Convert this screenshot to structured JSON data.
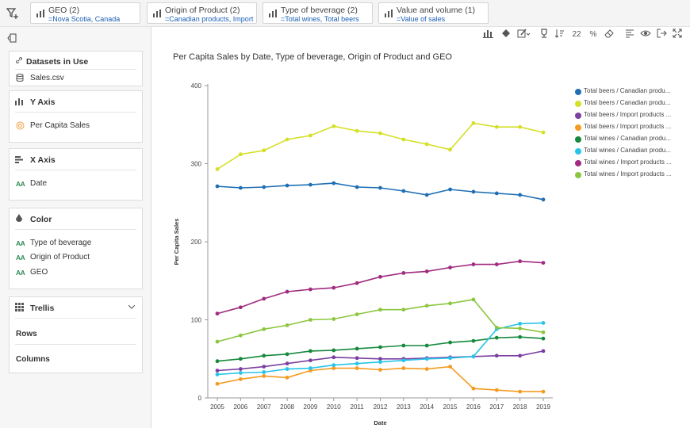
{
  "filterbar": {
    "chips": [
      {
        "title": "GEO (2)",
        "value": "=Nova Scotia, Canada"
      },
      {
        "title": "Origin of Product (2)",
        "value": "=Canadian products, Import ..."
      },
      {
        "title": "Type of beverage (2)",
        "value": "=Total wines, Total beers"
      },
      {
        "title": "Value and volume (1)",
        "value": "=Value of sales"
      }
    ]
  },
  "panel": {
    "datasets": {
      "title": "Datasets in Use",
      "item": "Sales.csv"
    },
    "yaxis": {
      "title": "Y Axis",
      "item": "Per Capita Sales"
    },
    "xaxis": {
      "title": "X Axis",
      "item": "Date"
    },
    "color": {
      "title": "Color",
      "items": [
        "Type of beverage",
        "Origin of Product",
        "GEO"
      ]
    },
    "trellis": {
      "title": "Trellis",
      "rows": "Rows",
      "columns": "Columns"
    },
    "aa_glyph": "AA"
  },
  "toolbar": {
    "icons": [
      "bar-chart-type-icon",
      "paint-bucket-icon",
      "edit-dropdown-icon",
      "trophy-icon",
      "sort-icon",
      "decimal-places-icon",
      "percent-icon",
      "eraser-icon",
      "align-icon",
      "eye-icon",
      "export-icon",
      "expand-icon"
    ],
    "decimal_label": "22",
    "percent_label": "%"
  },
  "chart_data": {
    "type": "line",
    "title": "Per Capita Sales by Date, Type of beverage, Origin of Product and GEO",
    "xlabel": "Date",
    "ylabel": "Per Capita Sales",
    "ylim": [
      0,
      400
    ],
    "yticks": [
      0,
      100,
      200,
      300,
      400
    ],
    "grid": false,
    "legend_position": "right",
    "x": [
      "2005",
      "2006",
      "2007",
      "2008",
      "2009",
      "2010",
      "2011",
      "2012",
      "2013",
      "2014",
      "2015",
      "2016",
      "2017",
      "2018",
      "2019"
    ],
    "series": [
      {
        "name": "Total beers / Canadian produ...",
        "color": "#1f6fb5",
        "values": [
          271,
          269,
          270,
          272,
          273,
          275,
          270,
          269,
          265,
          260,
          267,
          264,
          262,
          260,
          254
        ]
      },
      {
        "name": "Total beers / Canadian produ...",
        "color": "#d4e026",
        "values": [
          293,
          312,
          317,
          331,
          336,
          348,
          342,
          339,
          331,
          325,
          318,
          352,
          347,
          347,
          340
        ]
      },
      {
        "name": "Total beers / Import products ...",
        "color": "#7b3fa0",
        "values": [
          35,
          37,
          40,
          44,
          48,
          52,
          51,
          50,
          50,
          51,
          52,
          53,
          54,
          54,
          60
        ]
      },
      {
        "name": "Total beers / Import products ...",
        "color": "#f59b1f",
        "values": [
          18,
          24,
          28,
          26,
          35,
          38,
          38,
          36,
          38,
          37,
          40,
          12,
          10,
          8,
          8
        ]
      },
      {
        "name": "Total wines / Canadian produ...",
        "color": "#15893c",
        "values": [
          47,
          50,
          54,
          56,
          60,
          61,
          63,
          65,
          67,
          67,
          71,
          73,
          77,
          78,
          76
        ]
      },
      {
        "name": "Total wines / Canadian produ...",
        "color": "#27c4e8",
        "values": [
          30,
          32,
          33,
          37,
          38,
          42,
          44,
          46,
          48,
          50,
          51,
          53,
          88,
          95,
          96
        ]
      },
      {
        "name": "Total wines / Import products ...",
        "color": "#a02b7f",
        "values": [
          108,
          116,
          127,
          136,
          139,
          141,
          147,
          155,
          160,
          162,
          167,
          171,
          171,
          175,
          173
        ]
      },
      {
        "name": "Total wines / Import products ...",
        "color": "#8cc63f",
        "values": [
          72,
          80,
          88,
          93,
          100,
          101,
          107,
          113,
          113,
          118,
          121,
          126,
          90,
          89,
          84
        ]
      }
    ]
  }
}
